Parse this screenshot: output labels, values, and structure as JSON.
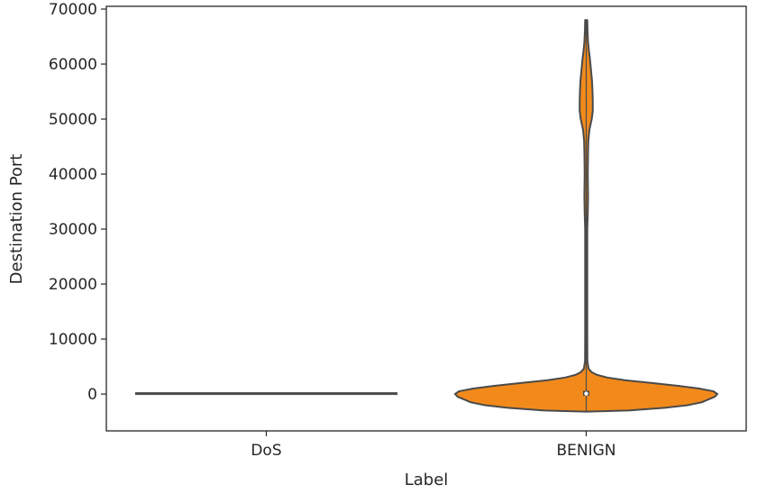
{
  "chart_data": {
    "type": "violin",
    "xlabel": "Label",
    "ylabel": "Destination Port",
    "categories": [
      "DoS",
      "BENIGN"
    ],
    "ylim": [
      -6700,
      70500
    ],
    "yticks": [
      0,
      10000,
      20000,
      30000,
      40000,
      50000,
      60000,
      70000
    ],
    "ytick_labels": [
      "0",
      "10000",
      "20000",
      "30000",
      "40000",
      "50000",
      "60000",
      "70000"
    ],
    "grid": false,
    "legend": "none",
    "colors": {
      "DoS": "#3a76b0",
      "BENIGN": "#f28a1b",
      "outline": "#4a4a4a"
    },
    "violins": [
      {
        "category": "DoS",
        "min": 80,
        "max": 80,
        "median": 80,
        "q1": 80,
        "q3": 80,
        "profile": [
          [
            80,
            1.0
          ]
        ]
      },
      {
        "category": "BENIGN",
        "min": -3200,
        "max": 68000,
        "median": 80,
        "q1": -300,
        "q3": 600,
        "profile": [
          [
            -3200,
            0.0
          ],
          [
            -3000,
            0.32
          ],
          [
            -2500,
            0.6
          ],
          [
            -2000,
            0.78
          ],
          [
            -1500,
            0.88
          ],
          [
            -1000,
            0.93
          ],
          [
            -500,
            0.98
          ],
          [
            0,
            1.0
          ],
          [
            500,
            0.97
          ],
          [
            1000,
            0.86
          ],
          [
            1500,
            0.7
          ],
          [
            2000,
            0.5
          ],
          [
            2500,
            0.3
          ],
          [
            3000,
            0.16
          ],
          [
            3500,
            0.08
          ],
          [
            4000,
            0.04
          ],
          [
            4600,
            0.018
          ],
          [
            6000,
            0.009
          ],
          [
            10000,
            0.006
          ],
          [
            15000,
            0.008
          ],
          [
            20000,
            0.006
          ],
          [
            25000,
            0.005
          ],
          [
            30000,
            0.007
          ],
          [
            33000,
            0.012
          ],
          [
            36000,
            0.014
          ],
          [
            40000,
            0.012
          ],
          [
            44000,
            0.014
          ],
          [
            46000,
            0.016
          ],
          [
            48000,
            0.024
          ],
          [
            50000,
            0.042
          ],
          [
            51500,
            0.05
          ],
          [
            53000,
            0.05
          ],
          [
            55000,
            0.048
          ],
          [
            57000,
            0.044
          ],
          [
            59000,
            0.036
          ],
          [
            61000,
            0.028
          ],
          [
            62500,
            0.02
          ],
          [
            64000,
            0.014
          ],
          [
            66000,
            0.01
          ],
          [
            68000,
            0.008
          ]
        ]
      }
    ]
  }
}
